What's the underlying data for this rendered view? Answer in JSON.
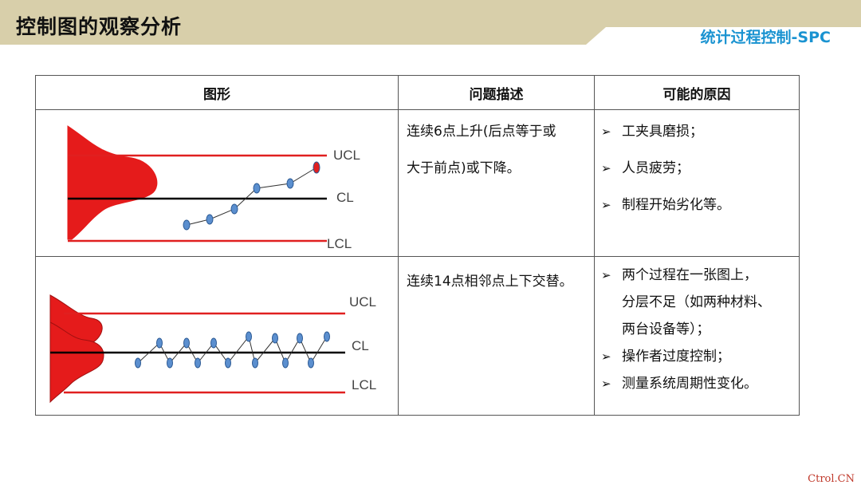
{
  "header": {
    "title": "控制图的观察分析",
    "subtitle": "统计过程控制-SPC",
    "band_color": "#d8cfaa"
  },
  "table": {
    "headers": [
      "图形",
      "问题描述",
      "可能的原因"
    ],
    "rows": [
      {
        "labels": {
          "ucl": "UCL",
          "cl": "CL",
          "lcl": "LCL"
        },
        "description_lines": [
          "连续6点上升(后点等于或",
          "大于前点)或下降。"
        ],
        "causes": [
          "工夹具磨损；",
          "人员疲劳；",
          "制程开始劣化等。"
        ]
      },
      {
        "labels": {
          "ucl": "UCL",
          "cl": "CL",
          "lcl": "LCL"
        },
        "description_lines": [
          "连续14点相邻点上下交替。"
        ],
        "causes": [
          {
            "bullet": true,
            "text": "两个过程在一张图上，"
          },
          {
            "bullet": false,
            "text": "分层不足（如两种材料、"
          },
          {
            "bullet": false,
            "text": "两台设备等）；"
          },
          {
            "bullet": true,
            "text": "操作者过度控制；"
          },
          {
            "bullet": true,
            "text": "测量系统周期性变化。"
          }
        ]
      }
    ]
  },
  "watermark": "Ctrol.CN",
  "colors": {
    "limit_line": "#e02020",
    "center_line": "#000000",
    "point_fill": "#5b8fcf",
    "highlight_point": "#e02020",
    "subtitle": "#1a93d1"
  }
}
